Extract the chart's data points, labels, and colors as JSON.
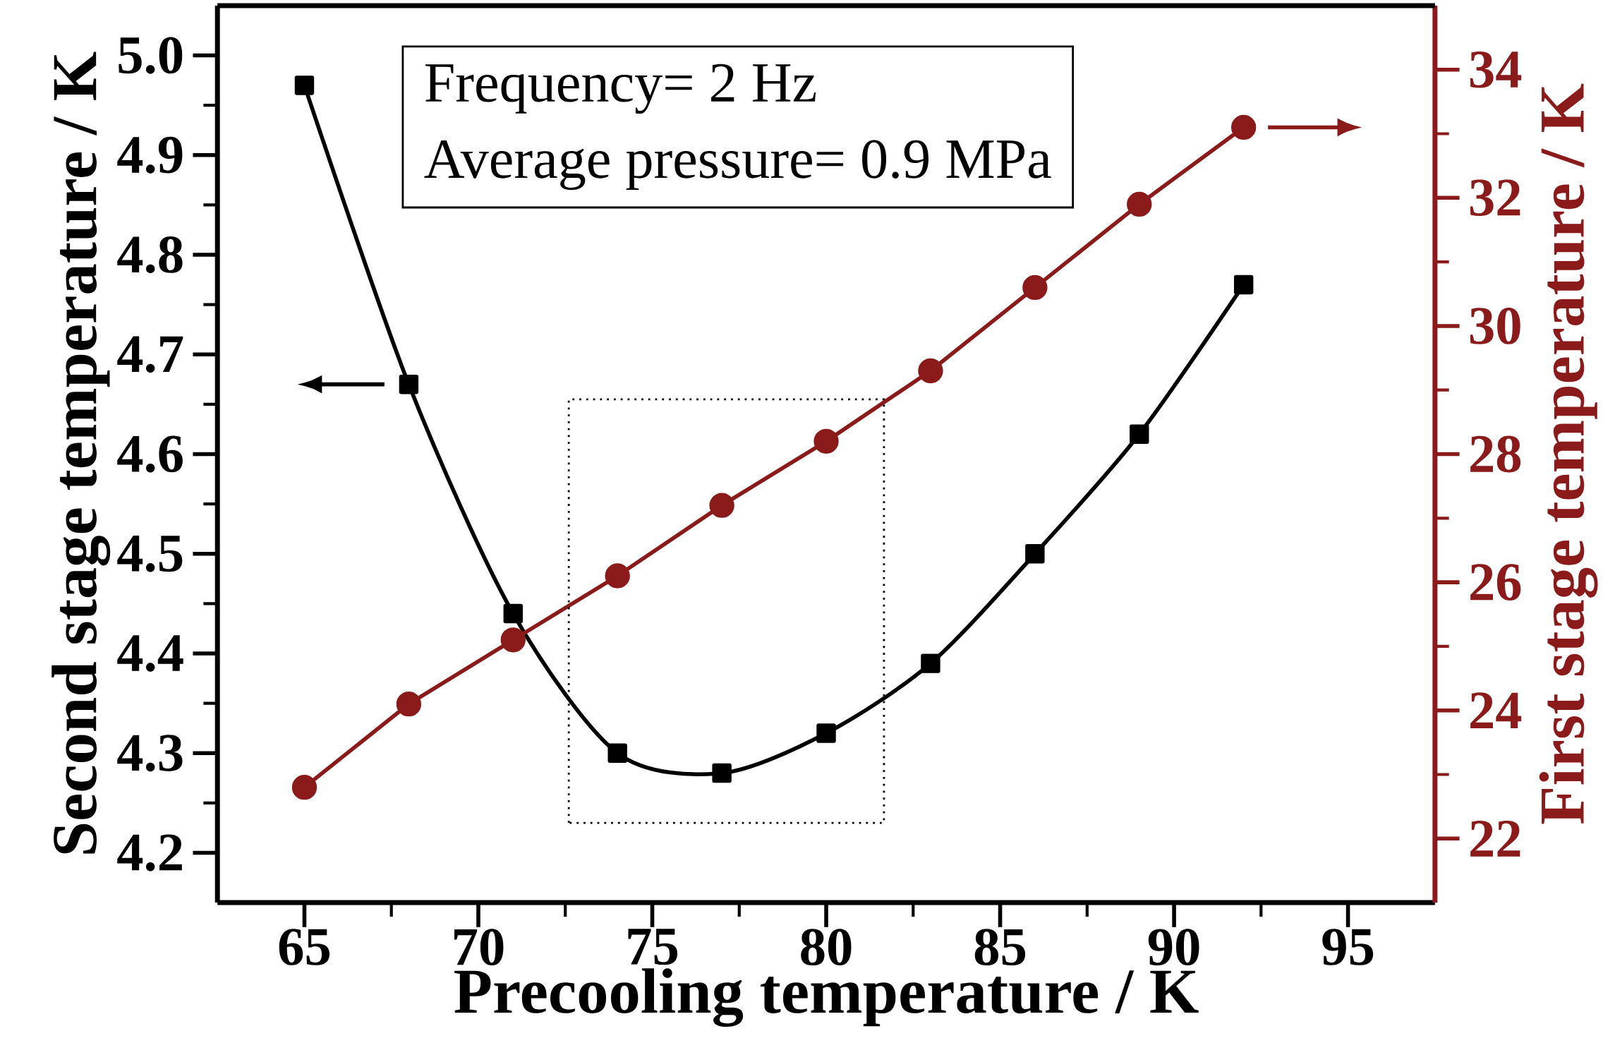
{
  "chart_data": {
    "type": "line",
    "x": [
      65,
      68,
      71,
      74,
      77,
      80,
      83,
      86,
      89,
      92
    ],
    "xlabel": "Precooling temperature / K",
    "ylabel": "Second stage temperature / K",
    "y2label": "First stage temperature / K",
    "xlim": [
      62.5,
      97.5
    ],
    "xticks": [
      65,
      70,
      75,
      80,
      85,
      90,
      95
    ],
    "ylim": [
      4.15,
      5.05
    ],
    "yticks": [
      4.2,
      4.3,
      4.4,
      4.5,
      4.6,
      4.7,
      4.8,
      4.9,
      {
        "value": 5,
        "label": "5.0"
      }
    ],
    "y2lim": [
      21,
      35
    ],
    "y2ticks": [
      22,
      24,
      26,
      28,
      30,
      32,
      34
    ],
    "grid": false,
    "series": [
      {
        "color": "#000000",
        "marker": "square",
        "values": [
          4.97,
          4.67,
          4.44,
          4.3,
          4.28,
          4.32,
          4.39,
          4.5,
          4.62,
          4.77
        ]
      },
      {
        "color": "#8b1a1a",
        "marker": "circle",
        "axis": "y2",
        "values": [
          22.8,
          24.1,
          25.1,
          26.1,
          27.2,
          28.2,
          29.3,
          30.6,
          31.9,
          33.1
        ]
      }
    ],
    "annotations": [
      "Frequency= 2 Hz",
      "Average pressure= 0.9 MPa"
    ]
  }
}
